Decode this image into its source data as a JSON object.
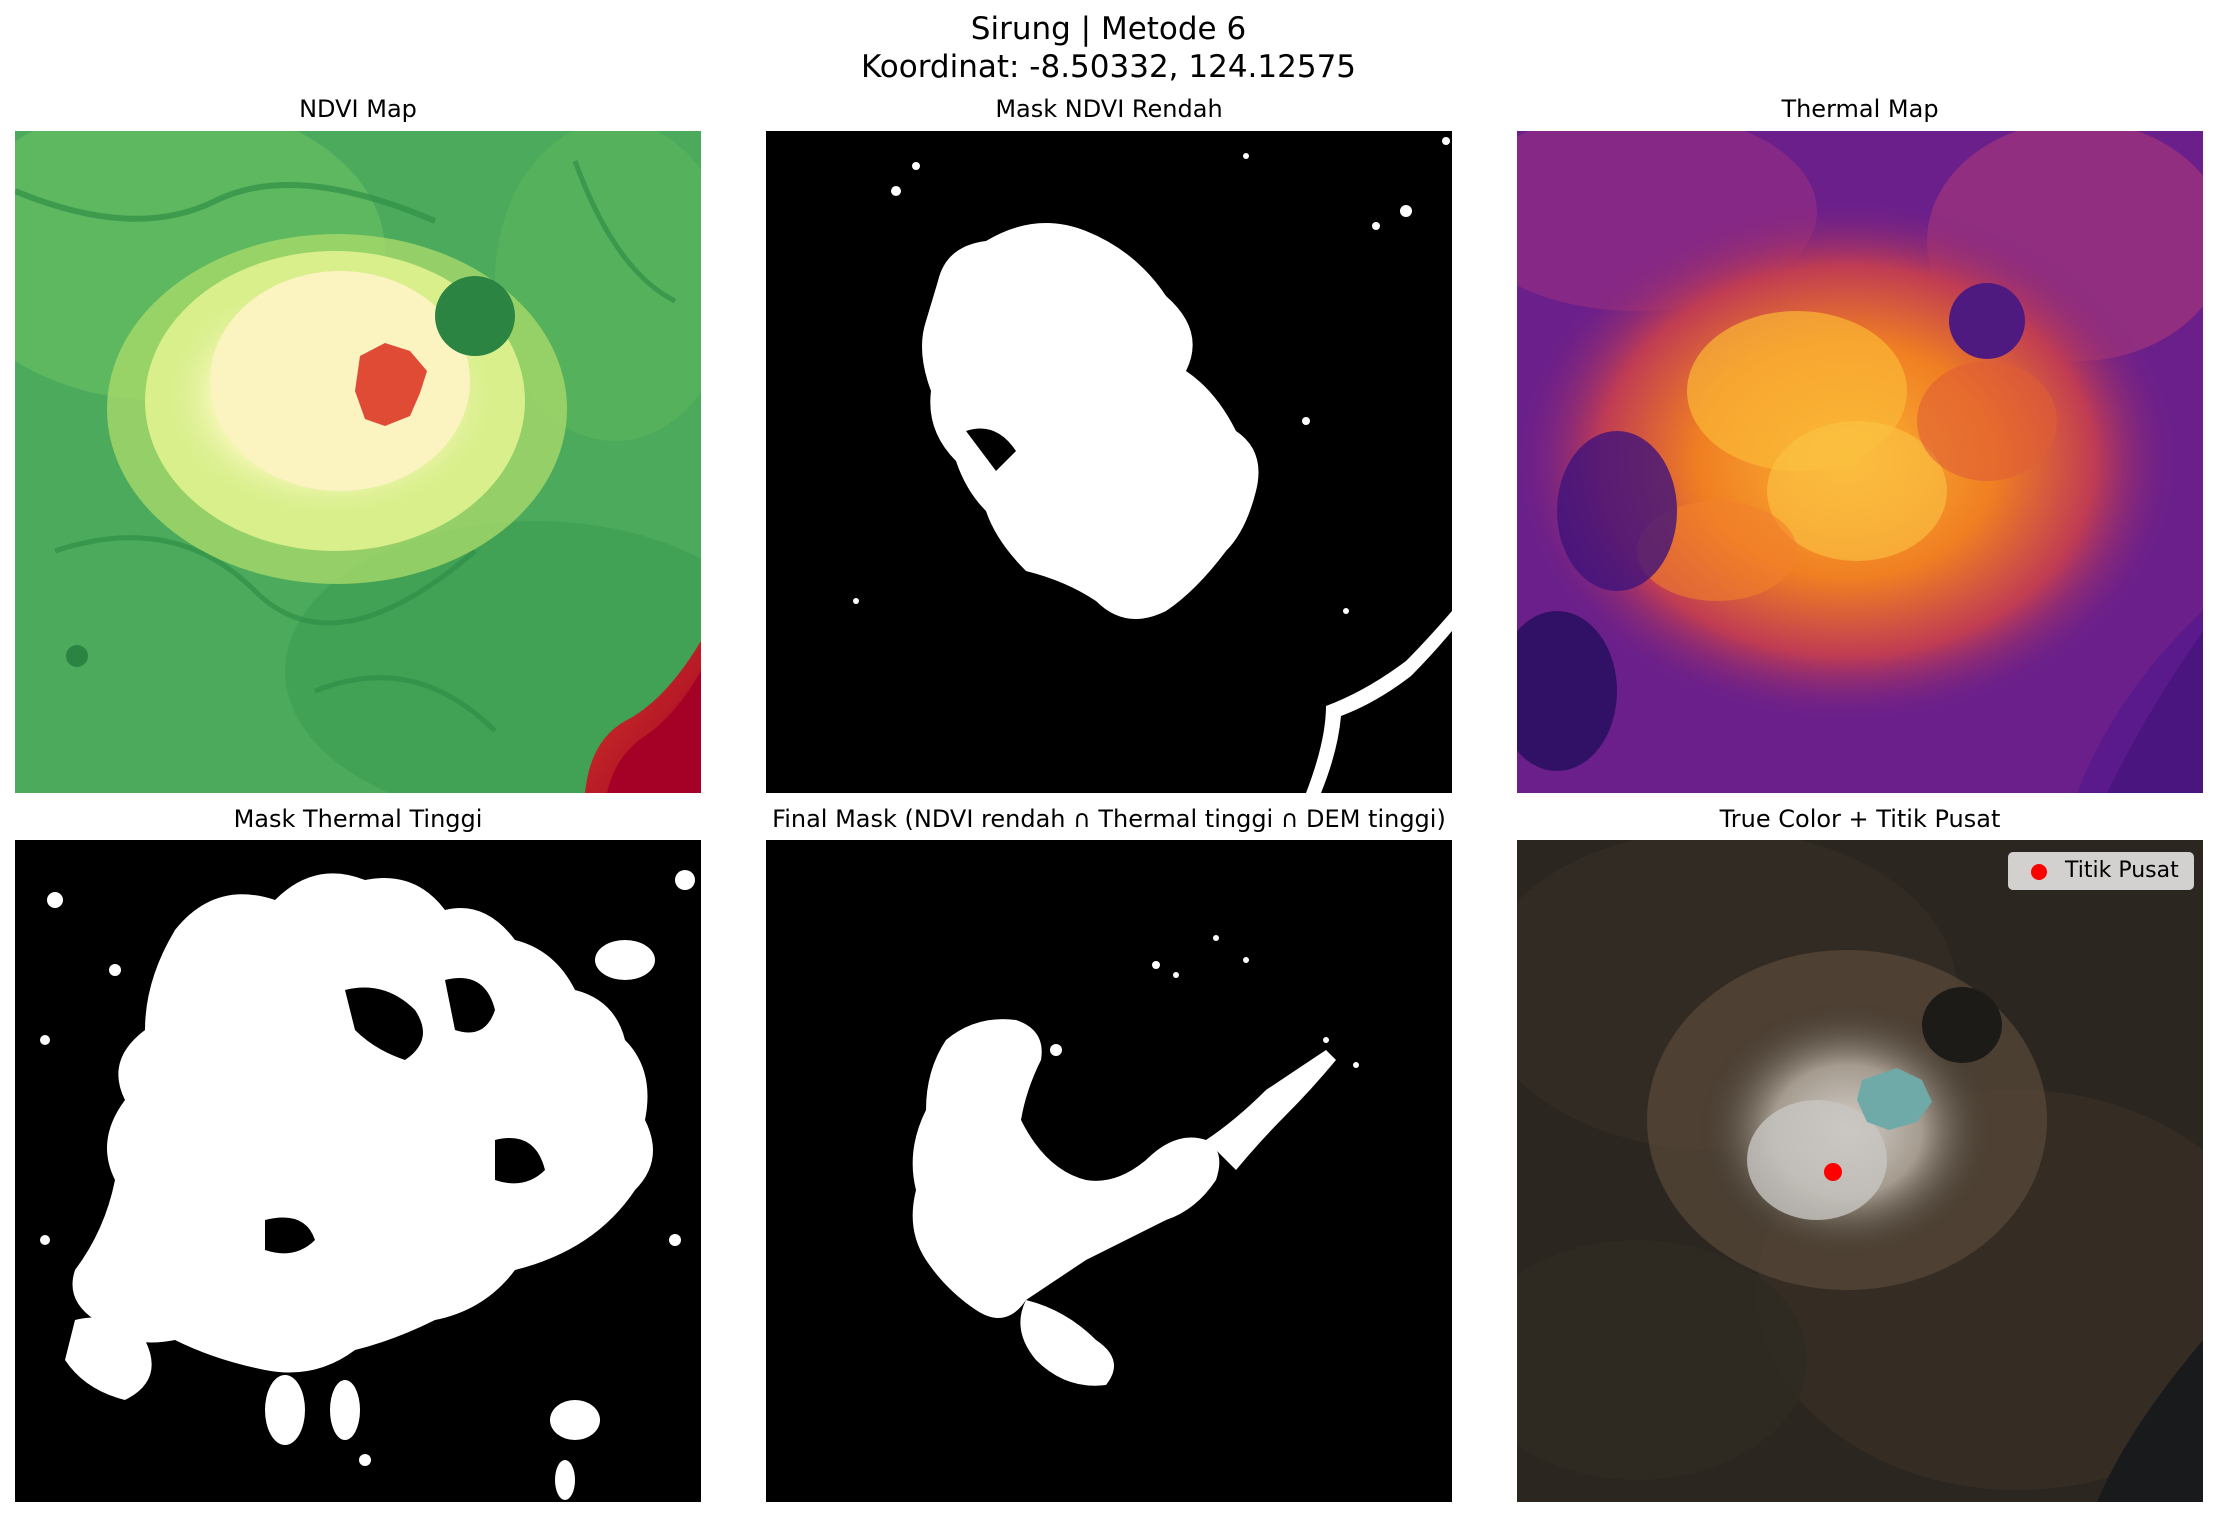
{
  "figure": {
    "title_line1": "Sirung | Metode 6",
    "title_line2": "Koordinat: -8.50332, 124.12575"
  },
  "panels": [
    {
      "title": "NDVI Map",
      "icon": "ndvi-heatmap",
      "colormap": "RdYlGn"
    },
    {
      "title": "Mask NDVI Rendah",
      "icon": "binary-mask"
    },
    {
      "title": "Thermal Map",
      "icon": "thermal-heatmap",
      "colormap": "inferno"
    },
    {
      "title": "Mask Thermal Tinggi",
      "icon": "binary-mask"
    },
    {
      "title": "Final Mask (NDVI rendah ∩ Thermal tinggi ∩ DEM tinggi)",
      "icon": "binary-mask"
    },
    {
      "title": "True Color + Titik Pusat",
      "icon": "satellite-true-color"
    }
  ],
  "legend": {
    "label": "Titik Pusat",
    "marker_color": "#ff0000"
  },
  "colors": {
    "mask_on": "#ffffff",
    "mask_off": "#000000",
    "crater_lake": "#6fa9a8"
  }
}
